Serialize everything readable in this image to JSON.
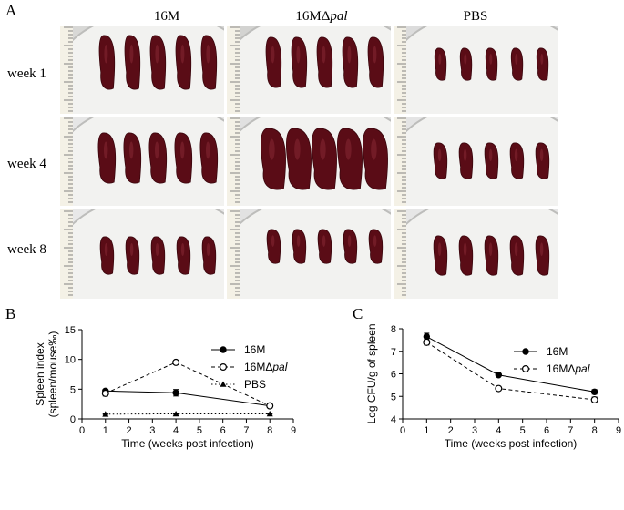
{
  "figure": {
    "panel_a": {
      "letter": "A",
      "columns": [
        {
          "prefix": "16M",
          "italic": ""
        },
        {
          "prefix": "16MΔ",
          "italic": "pal"
        },
        {
          "prefix": "PBS",
          "italic": ""
        }
      ],
      "rows": [
        "week 1",
        "week 4",
        "week 8"
      ]
    },
    "panel_b": {
      "letter": "B"
    },
    "panel_c": {
      "letter": "C"
    }
  },
  "chart_data": [
    {
      "type": "line",
      "title": "",
      "xlabel": "Time (weeks post infection)",
      "ylabel": "Spleen index",
      "ylabel2": "(spleen/mouse‰)",
      "xlim": [
        0,
        9
      ],
      "ylim": [
        0,
        15
      ],
      "xticks": [
        0,
        1,
        2,
        3,
        4,
        5,
        6,
        7,
        8,
        9
      ],
      "yticks": [
        0,
        5,
        10,
        15
      ],
      "legend_position": "top-right",
      "x": [
        1,
        4,
        8
      ],
      "series": [
        {
          "name": "16M",
          "name_italic": "",
          "marker": "filled-circle",
          "line": "solid",
          "values": [
            4.7,
            4.4,
            2.2
          ],
          "err": [
            0.25,
            0.55,
            0.25
          ]
        },
        {
          "name": "16MΔ",
          "name_italic": "pal",
          "marker": "open-circle",
          "line": "dashed",
          "values": [
            4.3,
            9.5,
            2.2
          ],
          "err": [
            0.45,
            0.3,
            0.2
          ]
        },
        {
          "name": "PBS",
          "name_italic": "",
          "marker": "triangle",
          "line": "dotted",
          "values": [
            0.8,
            0.85,
            0.85
          ],
          "err": [
            0.05,
            0.05,
            0.05
          ]
        }
      ]
    },
    {
      "type": "line",
      "title": "",
      "xlabel": "Time (weeks post infection)",
      "ylabel": "Log CFU/g of spleen",
      "ylabel2": "",
      "xlim": [
        0,
        9
      ],
      "ylim": [
        4,
        8
      ],
      "xticks": [
        0,
        1,
        2,
        3,
        4,
        5,
        6,
        7,
        8,
        9
      ],
      "yticks": [
        4,
        5,
        6,
        7,
        8
      ],
      "legend_position": "top-right",
      "x": [
        1,
        4,
        8
      ],
      "series": [
        {
          "name": "16M",
          "name_italic": "",
          "marker": "filled-circle",
          "line": "solid",
          "values": [
            7.65,
            5.95,
            5.2
          ],
          "err": [
            0.15,
            0.05,
            0.1
          ]
        },
        {
          "name": "16MΔ",
          "name_italic": "pal",
          "marker": "open-circle",
          "line": "dashed",
          "values": [
            7.4,
            5.35,
            4.85
          ],
          "err": [
            0.12,
            0.06,
            0.12
          ]
        }
      ]
    }
  ]
}
